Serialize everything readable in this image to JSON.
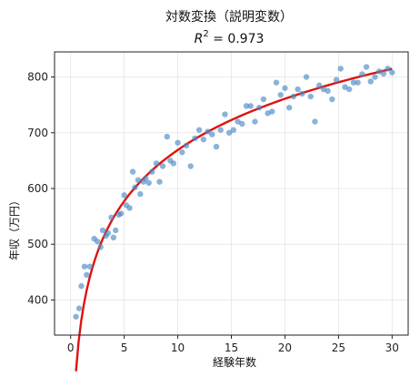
{
  "chart_data": {
    "type": "scatter",
    "title": "対数変換（説明変数）",
    "subtitle": "R² = 0.973",
    "subtitle_parts": {
      "r": "R",
      "sup": "2",
      "rest": " = 0.973"
    },
    "xlabel": "経験年数",
    "ylabel": "年収（万円）",
    "xlim": [
      -1.5,
      31.5
    ],
    "ylim": [
      337,
      845
    ],
    "xticks": [
      0,
      5,
      10,
      15,
      20,
      25,
      30
    ],
    "yticks": [
      400,
      500,
      600,
      700,
      800
    ],
    "grid": true,
    "colors": {
      "points": "#4a8bc4",
      "fit": "#e0120f"
    },
    "fit": {
      "a": 364,
      "b": 132.5,
      "x_from": 0.5,
      "x_to": 30,
      "form": "a + b*ln(x)"
    },
    "x": [
      0.5,
      0.8,
      1.0,
      1.3,
      1.5,
      1.8,
      2.2,
      2.5,
      2.8,
      3.0,
      3.3,
      3.5,
      3.8,
      4.0,
      4.2,
      4.5,
      4.7,
      5.0,
      5.2,
      5.5,
      5.8,
      6.0,
      6.3,
      6.5,
      6.8,
      7.0,
      7.3,
      7.6,
      8.0,
      8.3,
      8.6,
      9.0,
      9.3,
      9.6,
      10.0,
      10.4,
      10.8,
      11.2,
      11.6,
      12.0,
      12.4,
      12.8,
      13.2,
      13.6,
      14.0,
      14.4,
      14.8,
      15.2,
      15.6,
      16.0,
      16.4,
      16.8,
      17.2,
      17.6,
      18.0,
      18.4,
      18.8,
      19.2,
      19.6,
      20.0,
      20.4,
      20.8,
      21.2,
      21.6,
      22.0,
      22.4,
      22.8,
      23.2,
      23.6,
      24.0,
      24.4,
      24.8,
      25.2,
      25.6,
      26.0,
      26.4,
      26.8,
      27.2,
      27.6,
      28.0,
      28.4,
      28.8,
      29.2,
      29.6,
      30.0
    ],
    "y": [
      370,
      385,
      425,
      460,
      445,
      460,
      510,
      505,
      495,
      525,
      515,
      520,
      548,
      512,
      525,
      553,
      555,
      588,
      570,
      565,
      630,
      602,
      615,
      590,
      612,
      618,
      610,
      630,
      645,
      612,
      640,
      693,
      650,
      645,
      682,
      665,
      677,
      640,
      690,
      705,
      688,
      702,
      697,
      675,
      705,
      733,
      700,
      705,
      720,
      716,
      748,
      748,
      720,
      745,
      760,
      735,
      738,
      790,
      768,
      780,
      745,
      765,
      778,
      770,
      800,
      765,
      720,
      785,
      778,
      775,
      760,
      795,
      815,
      782,
      778,
      790,
      790,
      805,
      818,
      792,
      800,
      810,
      806,
      815,
      808
    ]
  }
}
